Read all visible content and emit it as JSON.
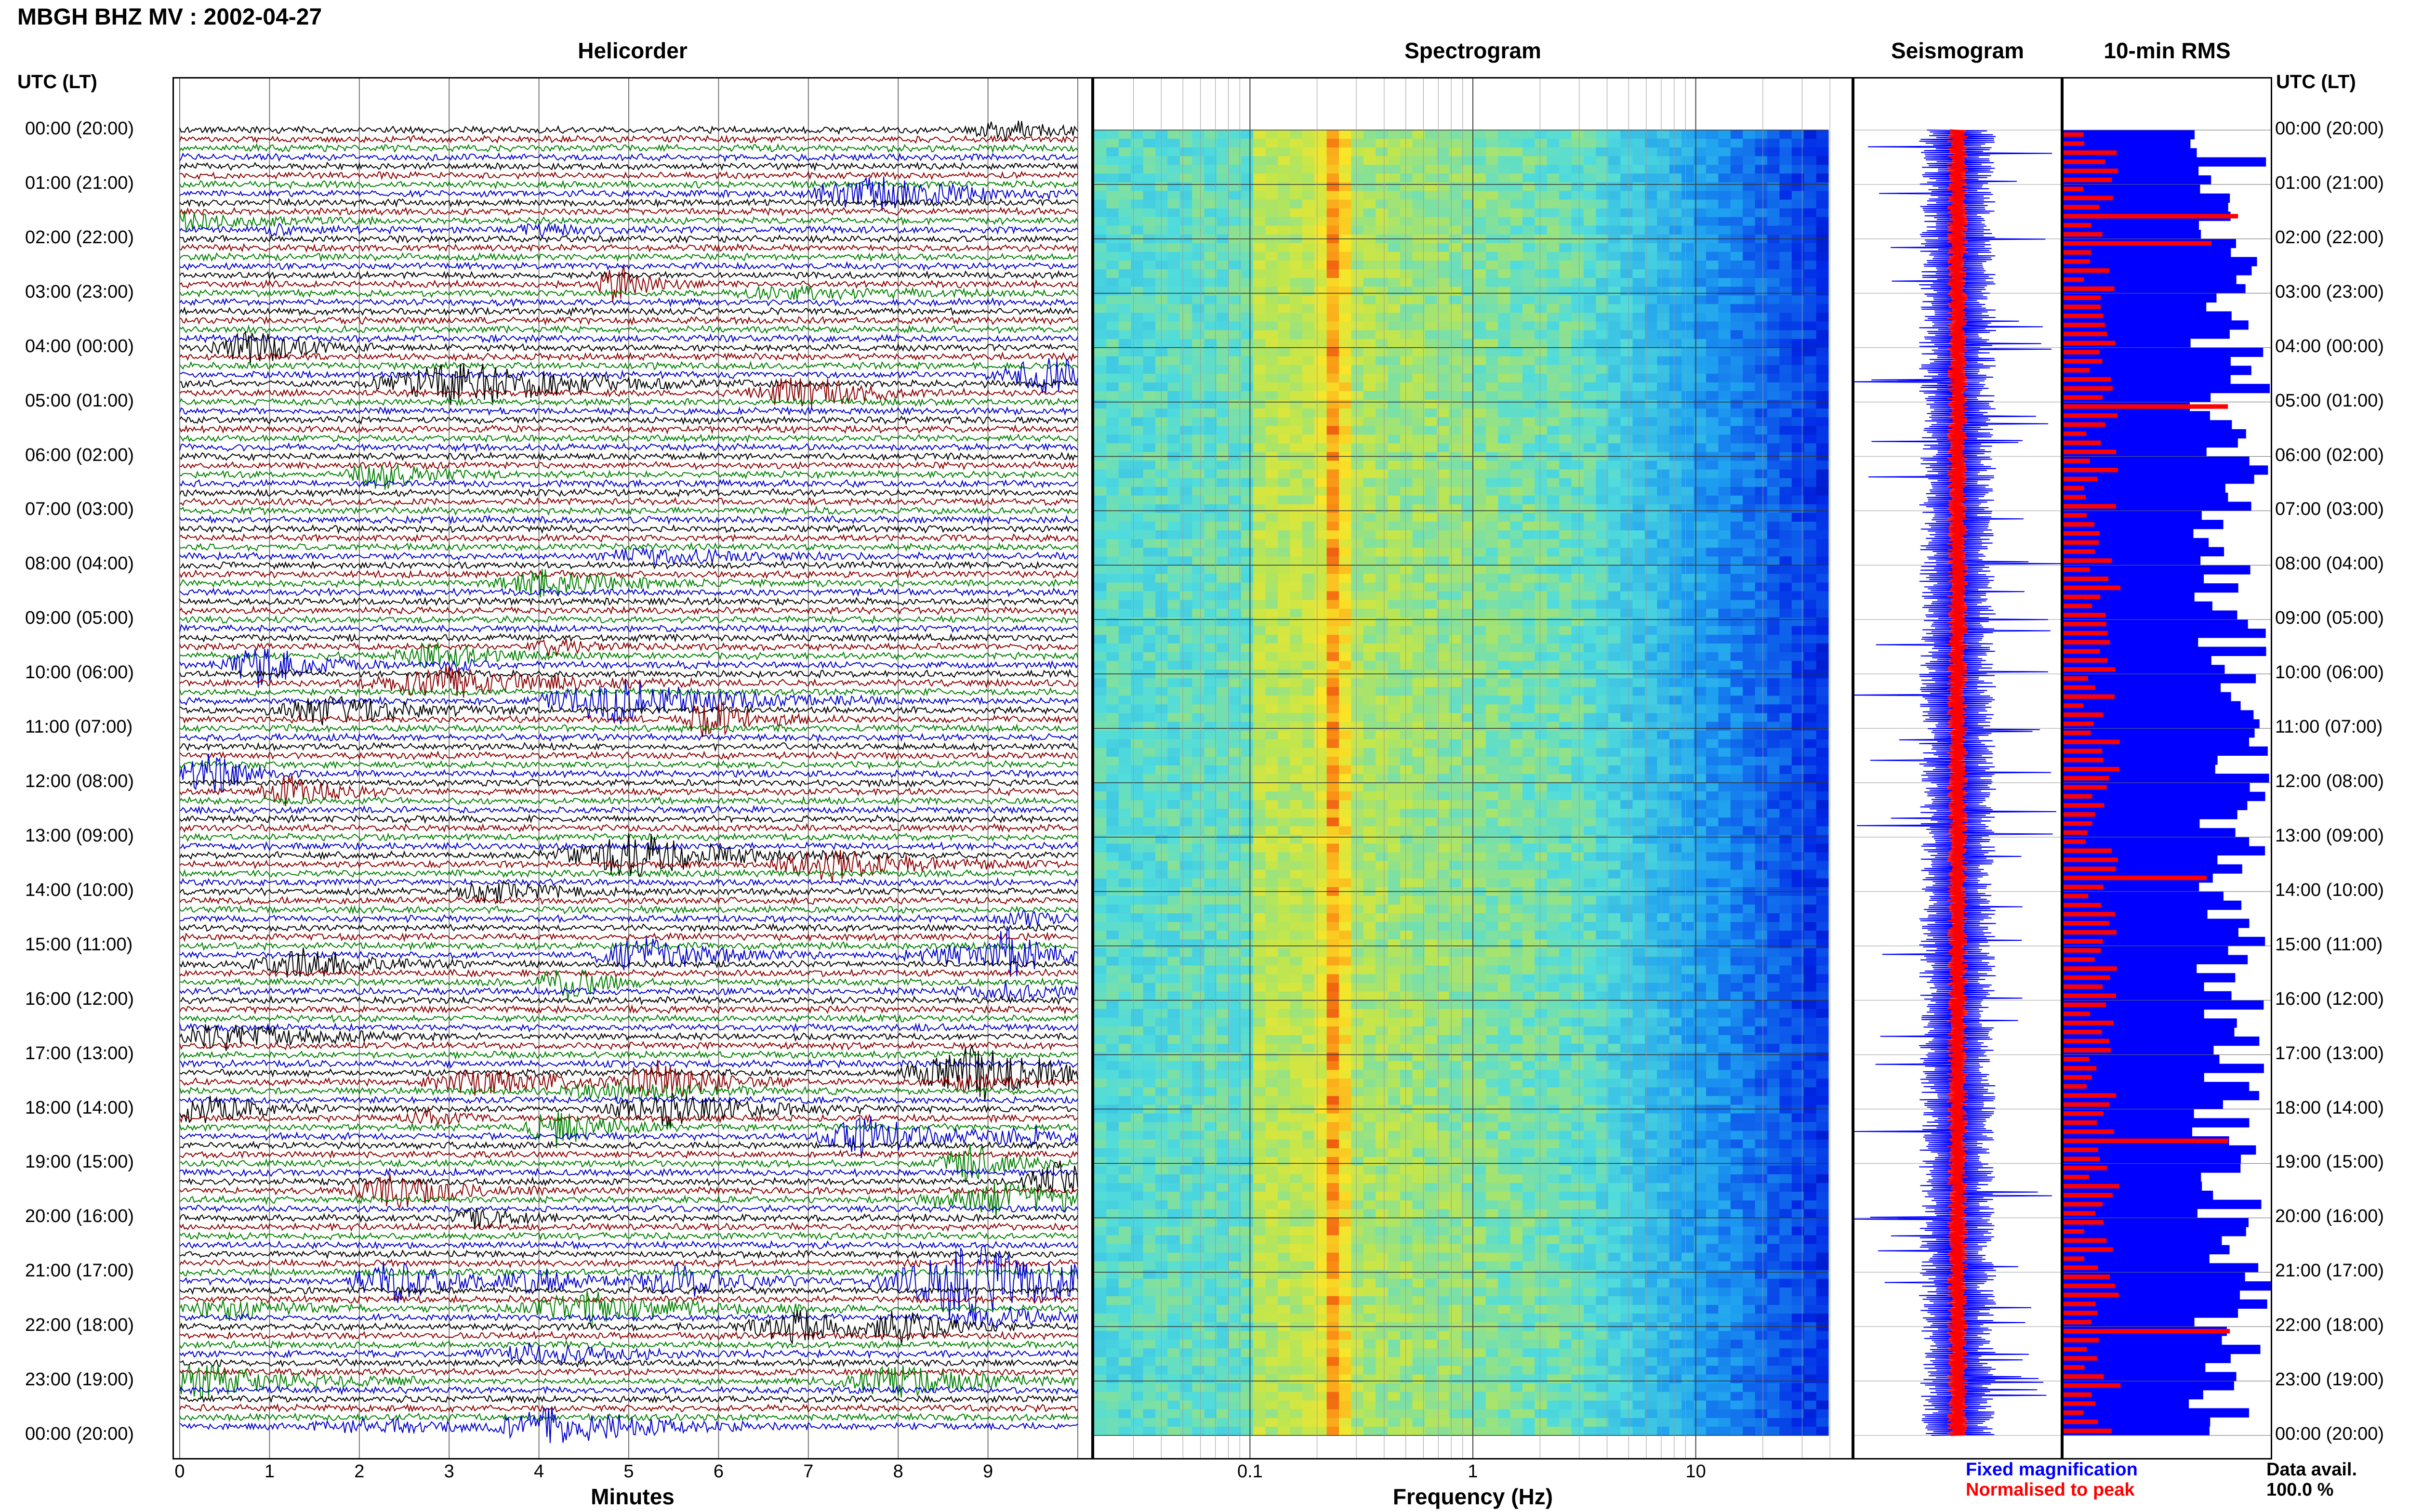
{
  "header": {
    "title": "MBGH BHZ MV : 2002-04-27"
  },
  "time_axis": {
    "label_left": "UTC (LT)",
    "label_right": "UTC (LT)",
    "ticks": [
      "00:00 (20:00)",
      "01:00 (21:00)",
      "02:00 (22:00)",
      "03:00 (23:00)",
      "04:00 (00:00)",
      "05:00 (01:00)",
      "06:00 (02:00)",
      "07:00 (03:00)",
      "08:00 (04:00)",
      "09:00 (05:00)",
      "10:00 (06:00)",
      "11:00 (07:00)",
      "12:00 (08:00)",
      "13:00 (09:00)",
      "14:00 (10:00)",
      "15:00 (11:00)",
      "16:00 (12:00)",
      "17:00 (13:00)",
      "18:00 (14:00)",
      "19:00 (15:00)",
      "20:00 (16:00)",
      "21:00 (17:00)",
      "22:00 (18:00)",
      "23:00 (19:00)",
      "00:00 (20:00)"
    ]
  },
  "legend": {
    "fixed": "Fixed magnification",
    "normalised": "Normalised to peak",
    "fixed_color": "#0000ff",
    "normalised_color": "#ff0000",
    "availability_label": "Data avail.",
    "availability_value": "100.0 %"
  },
  "chart_data": [
    {
      "type": "heatmap",
      "title": "Helicorder",
      "xlabel": "Minutes",
      "x_ticks": [
        "0",
        "1",
        "2",
        "3",
        "4",
        "5",
        "6",
        "7",
        "8",
        "9"
      ],
      "xlim": [
        0,
        10
      ],
      "trace_colors": [
        "#000000",
        "#8b0000",
        "#008000",
        "#0000cd"
      ]
    },
    {
      "type": "heatmap",
      "title": "Spectrogram",
      "xlabel": "Frequency (Hz)",
      "x_scale": "log",
      "x_ticks": [
        "0.1",
        "1",
        "10"
      ],
      "xlim": [
        0.02,
        50
      ]
    },
    {
      "type": "line",
      "title": "Seismogram",
      "series_colors": [
        "#0000ff",
        "#ff0000"
      ]
    },
    {
      "type": "bar",
      "title": "10-min RMS",
      "series_colors": [
        "#0000ff",
        "#ff0000"
      ]
    }
  ]
}
